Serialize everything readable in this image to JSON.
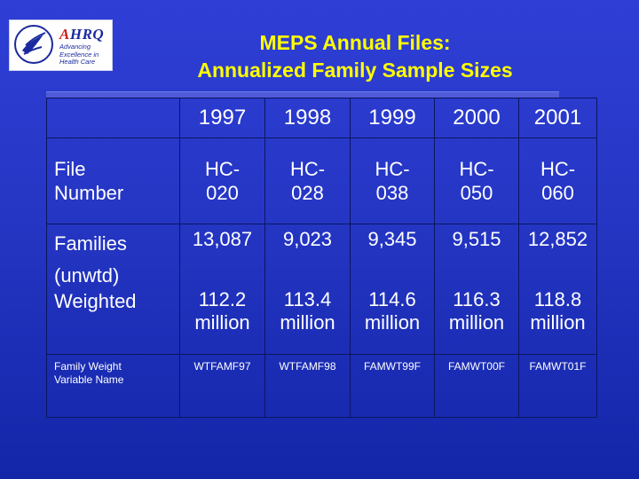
{
  "logo": {
    "agency": "AHRQ",
    "tagline": "Advancing Excellence in Health Care"
  },
  "title": {
    "line1": "MEPS Annual Files:",
    "line2": "Annualized Family Sample Sizes"
  },
  "table": {
    "years": [
      "1997",
      "1998",
      "1999",
      "2000",
      "2001"
    ],
    "file_number": {
      "label_line1": "File",
      "label_line2": "Number",
      "values": [
        {
          "line1": "HC-",
          "line2": "020"
        },
        {
          "line1": "HC-",
          "line2": "028"
        },
        {
          "line1": "HC-",
          "line2": "038"
        },
        {
          "line1": "HC-",
          "line2": "050"
        },
        {
          "line1": "HC-",
          "line2": "060"
        }
      ]
    },
    "families": {
      "label_line1": "Families",
      "label_line2": "(unwtd)",
      "values": [
        "13,087",
        "9,023",
        "9,345",
        "9,515",
        "12,852"
      ]
    },
    "weighted": {
      "label": "Weighted",
      "values": [
        {
          "number": "112.2",
          "unit": "million"
        },
        {
          "number": "113.4",
          "unit": "million"
        },
        {
          "number": "114.6",
          "unit": "million"
        },
        {
          "number": "116.3",
          "unit": "million"
        },
        {
          "number": "118.8",
          "unit": "million"
        }
      ]
    },
    "weight_variable": {
      "label_line1": "Family Weight",
      "label_line2": "Variable Name",
      "values": [
        "WTFAMF97",
        "WTFAMF98",
        "FAMWT99F",
        "FAMWT00F",
        "FAMWT01F"
      ]
    }
  },
  "colors": {
    "background": "#2536c4",
    "title": "#ffff00",
    "text": "#ffffff",
    "grid": "#0b1660"
  }
}
